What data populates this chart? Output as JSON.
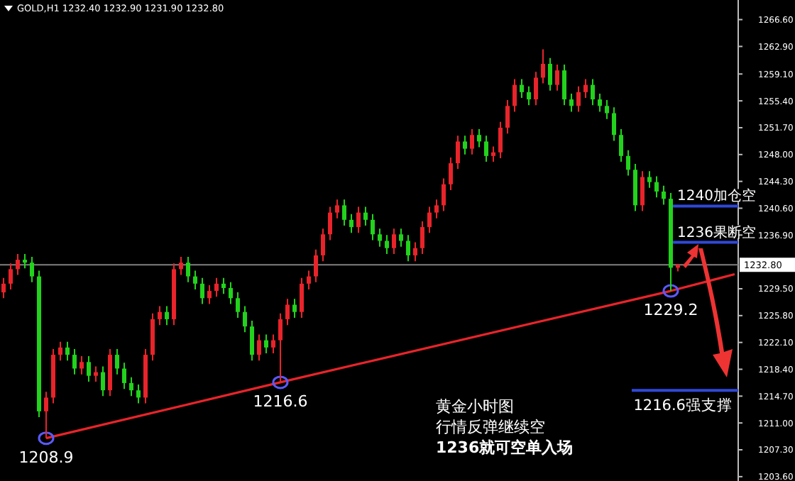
{
  "chart_data": {
    "type": "candlestick",
    "title": "GOLD,H1  1232.40 1232.90 1231.90 1232.80",
    "tick_labels": "y",
    "grid": false,
    "categories": [
      null,
      null,
      null,
      null,
      null,
      null,
      null,
      null,
      null,
      null,
      null,
      null,
      null,
      null,
      null,
      null,
      null,
      null,
      null,
      null,
      null,
      null,
      null,
      null,
      null,
      null,
      null,
      null,
      null,
      null,
      null,
      null,
      null,
      null,
      null,
      null,
      null,
      null,
      null,
      null,
      null,
      null,
      null,
      null,
      null,
      null,
      null,
      null,
      null,
      null,
      null,
      null,
      null,
      null,
      null,
      null,
      null,
      null,
      null,
      null,
      null,
      null,
      null,
      null,
      null,
      null,
      null,
      null,
      null,
      null,
      null,
      null,
      null,
      null,
      null,
      null,
      null,
      null,
      null,
      null,
      null,
      null,
      null,
      null,
      null,
      null,
      null,
      null,
      null,
      null,
      null,
      null,
      null,
      null,
      null,
      null,
      null,
      null,
      null,
      null,
      null,
      null,
      null,
      null
    ],
    "ohlc": [
      [
        1229.0,
        1231.0,
        1228.2,
        1230.2
      ],
      [
        1230.2,
        1233.0,
        1229.4,
        1232.2
      ],
      [
        1232.2,
        1234.3,
        1231.4,
        1233.5
      ],
      [
        1233.5,
        1234.3,
        1232.3,
        1233.1
      ],
      [
        1233.1,
        1233.9,
        1230.4,
        1231.2
      ],
      [
        1231.2,
        1232.0,
        1211.8,
        1212.6
      ],
      [
        1212.6,
        1215.3,
        1208.9,
        1214.5
      ],
      [
        1214.5,
        1221.2,
        1213.7,
        1220.4
      ],
      [
        1220.4,
        1222.2,
        1219.6,
        1221.4
      ],
      [
        1221.4,
        1222.2,
        1219.6,
        1220.4
      ],
      [
        1220.4,
        1221.2,
        1217.7,
        1218.5
      ],
      [
        1218.5,
        1220.2,
        1217.7,
        1219.4
      ],
      [
        1219.4,
        1220.2,
        1216.7,
        1217.5
      ],
      [
        1217.5,
        1218.8,
        1216.7,
        1218.0
      ],
      [
        1218.0,
        1218.8,
        1214.7,
        1215.5
      ],
      [
        1215.5,
        1221.2,
        1214.7,
        1220.4
      ],
      [
        1220.4,
        1221.2,
        1217.7,
        1218.5
      ],
      [
        1218.5,
        1219.3,
        1215.7,
        1216.5
      ],
      [
        1216.5,
        1217.3,
        1214.7,
        1215.5
      ],
      [
        1215.5,
        1216.3,
        1213.7,
        1214.5
      ],
      [
        1214.5,
        1221.2,
        1213.7,
        1220.4
      ],
      [
        1220.4,
        1226.1,
        1219.6,
        1225.3
      ],
      [
        1225.3,
        1227.1,
        1224.5,
        1226.3
      ],
      [
        1226.3,
        1227.1,
        1224.5,
        1225.3
      ],
      [
        1225.3,
        1233.0,
        1224.5,
        1232.2
      ],
      [
        1232.2,
        1233.9,
        1231.4,
        1233.1
      ],
      [
        1233.1,
        1233.9,
        1230.4,
        1231.2
      ],
      [
        1231.2,
        1232.0,
        1229.4,
        1230.2
      ],
      [
        1230.2,
        1231.0,
        1227.4,
        1228.2
      ],
      [
        1228.2,
        1230.0,
        1227.4,
        1229.2
      ],
      [
        1229.2,
        1231.0,
        1228.4,
        1230.2
      ],
      [
        1230.2,
        1231.0,
        1228.8,
        1229.6
      ],
      [
        1229.6,
        1230.4,
        1227.4,
        1228.2
      ],
      [
        1228.2,
        1229.0,
        1225.5,
        1226.3
      ],
      [
        1226.3,
        1227.1,
        1223.5,
        1224.3
      ],
      [
        1224.3,
        1225.1,
        1219.6,
        1220.4
      ],
      [
        1220.4,
        1223.2,
        1219.6,
        1222.4
      ],
      [
        1222.4,
        1223.2,
        1220.6,
        1221.4
      ],
      [
        1221.4,
        1223.2,
        1220.6,
        1222.4
      ],
      [
        1222.4,
        1226.1,
        1216.6,
        1225.3
      ],
      [
        1225.3,
        1228.1,
        1224.5,
        1227.3
      ],
      [
        1227.3,
        1228.1,
        1225.5,
        1226.3
      ],
      [
        1226.3,
        1231.0,
        1225.5,
        1230.2
      ],
      [
        1230.2,
        1232.0,
        1229.4,
        1231.2
      ],
      [
        1231.2,
        1234.9,
        1230.4,
        1234.1
      ],
      [
        1234.1,
        1237.8,
        1233.3,
        1237.0
      ],
      [
        1237.0,
        1240.8,
        1236.2,
        1240.0
      ],
      [
        1240.0,
        1241.8,
        1239.2,
        1241.0
      ],
      [
        1241.0,
        1241.8,
        1238.2,
        1239.0
      ],
      [
        1239.0,
        1239.8,
        1237.2,
        1238.0
      ],
      [
        1238.0,
        1240.8,
        1237.2,
        1240.0
      ],
      [
        1240.0,
        1240.8,
        1238.2,
        1239.0
      ],
      [
        1239.0,
        1239.8,
        1236.2,
        1237.0
      ],
      [
        1237.0,
        1237.8,
        1235.3,
        1236.1
      ],
      [
        1236.1,
        1236.9,
        1234.3,
        1235.1
      ],
      [
        1235.1,
        1237.8,
        1234.3,
        1237.0
      ],
      [
        1237.0,
        1237.8,
        1235.3,
        1236.1
      ],
      [
        1236.1,
        1236.9,
        1233.3,
        1234.1
      ],
      [
        1234.1,
        1235.9,
        1233.3,
        1235.1
      ],
      [
        1235.1,
        1238.8,
        1234.3,
        1238.0
      ],
      [
        1238.0,
        1240.8,
        1237.2,
        1240.0
      ],
      [
        1240.0,
        1241.8,
        1239.2,
        1241.0
      ],
      [
        1241.0,
        1244.7,
        1240.2,
        1243.9
      ],
      [
        1243.9,
        1247.6,
        1243.1,
        1246.8
      ],
      [
        1246.8,
        1250.6,
        1246.0,
        1249.8
      ],
      [
        1249.8,
        1250.6,
        1248.0,
        1248.8
      ],
      [
        1248.8,
        1251.5,
        1248.0,
        1250.7
      ],
      [
        1250.7,
        1251.5,
        1249.0,
        1249.8
      ],
      [
        1249.8,
        1250.6,
        1247.0,
        1247.8
      ],
      [
        1247.8,
        1249.1,
        1247.0,
        1248.3
      ],
      [
        1248.3,
        1252.5,
        1247.5,
        1251.7
      ],
      [
        1251.7,
        1255.5,
        1250.9,
        1254.7
      ],
      [
        1254.7,
        1258.4,
        1253.9,
        1257.6
      ],
      [
        1257.6,
        1258.4,
        1255.8,
        1256.6
      ],
      [
        1256.6,
        1257.4,
        1254.8,
        1255.6
      ],
      [
        1255.6,
        1259.4,
        1254.8,
        1258.6
      ],
      [
        1258.6,
        1262.5,
        1257.8,
        1260.5
      ],
      [
        1260.5,
        1261.3,
        1256.8,
        1257.6
      ],
      [
        1257.6,
        1260.4,
        1256.8,
        1259.6
      ],
      [
        1259.6,
        1260.4,
        1254.8,
        1255.6
      ],
      [
        1255.6,
        1256.4,
        1253.9,
        1254.7
      ],
      [
        1254.7,
        1257.4,
        1253.9,
        1256.6
      ],
      [
        1256.6,
        1258.4,
        1255.8,
        1257.6
      ],
      [
        1257.6,
        1258.4,
        1254.8,
        1255.6
      ],
      [
        1255.6,
        1256.4,
        1253.9,
        1254.7
      ],
      [
        1254.7,
        1255.5,
        1252.9,
        1253.7
      ],
      [
        1253.7,
        1254.5,
        1249.9,
        1250.7
      ],
      [
        1250.7,
        1251.5,
        1247.0,
        1247.8
      ],
      [
        1247.8,
        1248.6,
        1245.1,
        1245.9
      ],
      [
        1245.9,
        1246.7,
        1240.2,
        1241.0
      ],
      [
        1241.0,
        1245.7,
        1240.2,
        1244.9
      ],
      [
        1244.9,
        1245.7,
        1243.4,
        1244.2
      ],
      [
        1244.2,
        1245.0,
        1242.1,
        1242.9
      ],
      [
        1242.9,
        1243.7,
        1241.1,
        1241.9
      ],
      [
        1241.9,
        1242.7,
        1229.2,
        1232.4
      ],
      [
        1232.4,
        1232.9,
        1231.9,
        1232.8
      ],
      null,
      null,
      null,
      null,
      null,
      null,
      null,
      null
    ],
    "series": [
      {
        "type": "line",
        "color": "#e8242a",
        "values": [
          null,
          null,
          null,
          null,
          null,
          null,
          1208.9,
          null,
          null,
          null,
          null,
          null,
          null,
          null,
          null,
          null,
          null,
          null,
          null,
          null,
          null,
          null,
          null,
          null,
          null,
          null,
          null,
          null,
          null,
          null,
          null,
          null,
          null,
          null,
          null,
          null,
          null,
          null,
          null,
          1216.6,
          null,
          null,
          null,
          null,
          null,
          null,
          null,
          null,
          null,
          null,
          null,
          null,
          null,
          null,
          null,
          null,
          null,
          null,
          null,
          null,
          null,
          null,
          null,
          null,
          null,
          null,
          null,
          null,
          null,
          null,
          null,
          null,
          null,
          null,
          null,
          null,
          null,
          null,
          null,
          null,
          null,
          null,
          null,
          null,
          null,
          null,
          null,
          null,
          null,
          null,
          null,
          null,
          null,
          null,
          1229.2,
          null,
          null,
          null,
          null,
          null,
          null,
          null,
          null,
          1231.5
        ]
      },
      {
        "type": "scatter",
        "color": "#5a5aff",
        "marker": "circle",
        "values": [
          null,
          null,
          null,
          null,
          null,
          null,
          1208.9,
          null,
          null,
          null,
          null,
          null,
          null,
          null,
          null,
          null,
          null,
          null,
          null,
          null,
          null,
          null,
          null,
          null,
          null,
          null,
          null,
          null,
          null,
          null,
          null,
          null,
          null,
          null,
          null,
          null,
          null,
          null,
          null,
          1216.6,
          null,
          null,
          null,
          null,
          null,
          null,
          null,
          null,
          null,
          null,
          null,
          null,
          null,
          null,
          null,
          null,
          null,
          null,
          null,
          null,
          null,
          null,
          null,
          null,
          null,
          null,
          null,
          null,
          null,
          null,
          null,
          null,
          null,
          null,
          null,
          null,
          null,
          null,
          null,
          null,
          null,
          null,
          null,
          null,
          null,
          null,
          null,
          null,
          null,
          null,
          null,
          null,
          null,
          null,
          1229.2,
          null,
          null,
          null,
          null,
          null,
          null,
          null,
          null,
          null
        ],
        "value_labels": [
          null,
          null,
          null,
          null,
          null,
          null,
          "1208.9",
          null,
          null,
          null,
          null,
          null,
          null,
          null,
          null,
          null,
          null,
          null,
          null,
          null,
          null,
          null,
          null,
          null,
          null,
          null,
          null,
          null,
          null,
          null,
          null,
          null,
          null,
          null,
          null,
          null,
          null,
          null,
          null,
          "1216.6",
          null,
          null,
          null,
          null,
          null,
          null,
          null,
          null,
          null,
          null,
          null,
          null,
          null,
          null,
          null,
          null,
          null,
          null,
          null,
          null,
          null,
          null,
          null,
          null,
          null,
          null,
          null,
          null,
          null,
          null,
          null,
          null,
          null,
          null,
          null,
          null,
          null,
          null,
          null,
          null,
          null,
          null,
          null,
          null,
          null,
          null,
          null,
          null,
          null,
          null,
          null,
          null,
          null,
          null,
          "1229.2",
          null,
          null,
          null,
          null,
          null,
          null,
          null,
          null,
          null
        ]
      }
    ],
    "ylim": [
      1203.0,
      1269.3
    ],
    "yticks": [
      {
        "value": 1266.6,
        "label": "1266.60"
      },
      {
        "value": 1262.9,
        "label": "1262.90"
      },
      {
        "value": 1259.1,
        "label": "1259.10"
      },
      {
        "value": 1255.4,
        "label": "1255.40"
      },
      {
        "value": 1251.7,
        "label": "1251.70"
      },
      {
        "value": 1248.0,
        "label": "1248.00"
      },
      {
        "value": 1244.3,
        "label": "1244.30"
      },
      {
        "value": 1240.6,
        "label": "1240.60"
      },
      {
        "value": 1236.9,
        "label": "1236.90"
      },
      {
        "value": 1229.5,
        "label": "1229.50"
      },
      {
        "value": 1225.8,
        "label": "1225.80"
      },
      {
        "value": 1222.1,
        "label": "1222.10"
      },
      {
        "value": 1218.4,
        "label": "1218.40"
      },
      {
        "value": 1214.7,
        "label": "1214.70"
      },
      {
        "value": 1211.0,
        "label": "1211.00"
      },
      {
        "value": 1207.3,
        "label": "1207.30"
      },
      {
        "value": 1203.6,
        "label": "1203.60"
      }
    ],
    "ref_lines": [
      {
        "axis": "y",
        "value": 1232.8,
        "label": "1232.80",
        "color": "#808080"
      },
      {
        "axis": "y",
        "value": 1240.9,
        "label": "1240加仓空",
        "color": "#3048d8"
      },
      {
        "axis": "y",
        "value": 1235.9,
        "label": "1236果断空",
        "color": "#3048d8"
      },
      {
        "axis": "y",
        "value": 1215.5,
        "label": "1216.6强支撑",
        "color": "#3048d8"
      }
    ],
    "annotations": [
      "黄金小时图",
      "行情反弹继续空",
      "1236就可空单入场"
    ]
  }
}
